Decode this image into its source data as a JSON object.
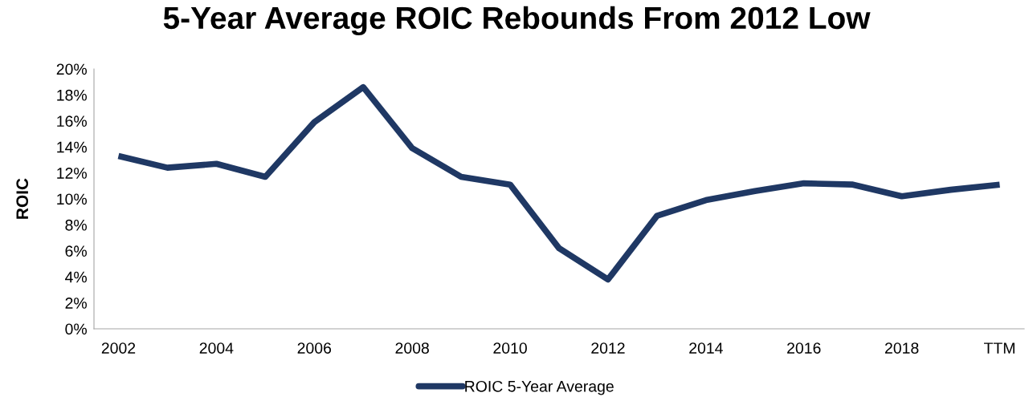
{
  "chart_data": {
    "type": "line",
    "title": "5-Year Average ROIC Rebounds From 2012 Low",
    "ylabel": "ROIC",
    "categories": [
      "2002",
      null,
      "2004",
      null,
      "2006",
      null,
      "2008",
      null,
      "2010",
      null,
      "2012",
      null,
      "2014",
      null,
      "2016",
      null,
      "2018",
      null,
      "TTM"
    ],
    "series": [
      {
        "name": "ROIC 5-Year Average",
        "color": "#1f3864",
        "values": [
          13.3,
          12.4,
          12.7,
          11.7,
          15.9,
          18.6,
          13.9,
          11.7,
          11.1,
          6.2,
          3.8,
          8.7,
          9.9,
          10.6,
          11.2,
          11.1,
          10.2,
          10.7,
          11.1
        ]
      }
    ],
    "ylim": [
      0,
      20
    ],
    "yticks": [
      {
        "value": 0,
        "label": "0%"
      },
      {
        "value": 2,
        "label": "2%"
      },
      {
        "value": 4,
        "label": "4%"
      },
      {
        "value": 6,
        "label": "6%"
      },
      {
        "value": 8,
        "label": "8%"
      },
      {
        "value": 10,
        "label": "10%"
      },
      {
        "value": 12,
        "label": "12%"
      },
      {
        "value": 14,
        "label": "14%"
      },
      {
        "value": 16,
        "label": "16%"
      },
      {
        "value": 18,
        "label": "18%"
      },
      {
        "value": 20,
        "label": "20%"
      }
    ],
    "grid": false,
    "legend": "bottom",
    "marker": "none",
    "line_style": "solid"
  }
}
